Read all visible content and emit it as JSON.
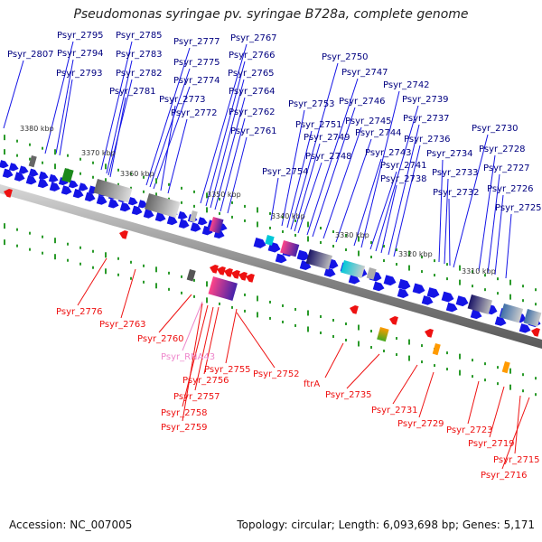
{
  "title": "Pseudomonas syringae pv. syringae B728a, complete genome",
  "footer": {
    "accession": "Accession: NC_007005",
    "topology": "Topology: circular; Length: 6,093,698 bp; Genes: 5,171"
  },
  "colors": {
    "forward": "#1414e6",
    "reverse": "#ee1111",
    "tick": "#2a9a2a",
    "rna_label": "#ee88cc",
    "axis": "#8c8c8c"
  },
  "axis_ticks": [
    {
      "label": "3380 kbp"
    },
    {
      "label": "3370 kbp"
    },
    {
      "label": "3360 kbp"
    },
    {
      "label": "3350 kbp"
    },
    {
      "label": "3340 kbp"
    },
    {
      "label": "3330 kbp"
    },
    {
      "label": "3320 kbp"
    },
    {
      "label": "3310 kbp"
    }
  ],
  "top_labels": [
    {
      "text": "Psyr_2795"
    },
    {
      "text": "Psyr_2807"
    },
    {
      "text": "Psyr_2794"
    },
    {
      "text": "Psyr_2793"
    },
    {
      "text": "Psyr_2785"
    },
    {
      "text": "Psyr_2783"
    },
    {
      "text": "Psyr_2782"
    },
    {
      "text": "Psyr_2781"
    },
    {
      "text": "Psyr_2777"
    },
    {
      "text": "Psyr_2775"
    },
    {
      "text": "Psyr_2774"
    },
    {
      "text": "Psyr_2773"
    },
    {
      "text": "Psyr_2772"
    },
    {
      "text": "Psyr_2767"
    },
    {
      "text": "Psyr_2766"
    },
    {
      "text": "Psyr_2765"
    },
    {
      "text": "Psyr_2764"
    },
    {
      "text": "Psyr_2762"
    },
    {
      "text": "Psyr_2761"
    },
    {
      "text": "Psyr_2754"
    },
    {
      "text": "Psyr_2753"
    },
    {
      "text": "Psyr_2751"
    },
    {
      "text": "Psyr_2750"
    },
    {
      "text": "Psyr_2749"
    },
    {
      "text": "Psyr_2748"
    },
    {
      "text": "Psyr_2747"
    },
    {
      "text": "Psyr_2746"
    },
    {
      "text": "Psyr_2745"
    },
    {
      "text": "Psyr_2744"
    },
    {
      "text": "Psyr_2743"
    },
    {
      "text": "Psyr_2742"
    },
    {
      "text": "Psyr_2741"
    },
    {
      "text": "Psyr_2739"
    },
    {
      "text": "Psyr_2738"
    },
    {
      "text": "Psyr_2737"
    },
    {
      "text": "Psyr_2736"
    },
    {
      "text": "Psyr_2734"
    },
    {
      "text": "Psyr_2733"
    },
    {
      "text": "Psyr_2732"
    },
    {
      "text": "Psyr_2730"
    },
    {
      "text": "Psyr_2728"
    },
    {
      "text": "Psyr_2727"
    },
    {
      "text": "Psyr_2726"
    },
    {
      "text": "Psyr_2725"
    }
  ],
  "bottom_labels": [
    {
      "text": "Psyr_2776"
    },
    {
      "text": "Psyr_2763"
    },
    {
      "text": "Psyr_2760"
    },
    {
      "text": "Psyr_RNA43",
      "rna": true
    },
    {
      "text": "Psyr_2755"
    },
    {
      "text": "Psyr_2756"
    },
    {
      "text": "Psyr_2757"
    },
    {
      "text": "Psyr_2758"
    },
    {
      "text": "Psyr_2759"
    },
    {
      "text": "Psyr_2752"
    },
    {
      "text": "ftrA"
    },
    {
      "text": "Psyr_2735"
    },
    {
      "text": "Psyr_2731"
    },
    {
      "text": "Psyr_2729"
    },
    {
      "text": "Psyr_2723"
    },
    {
      "text": "Psyr_2719"
    },
    {
      "text": "Psyr_2715"
    },
    {
      "text": "Psyr_2716"
    }
  ]
}
